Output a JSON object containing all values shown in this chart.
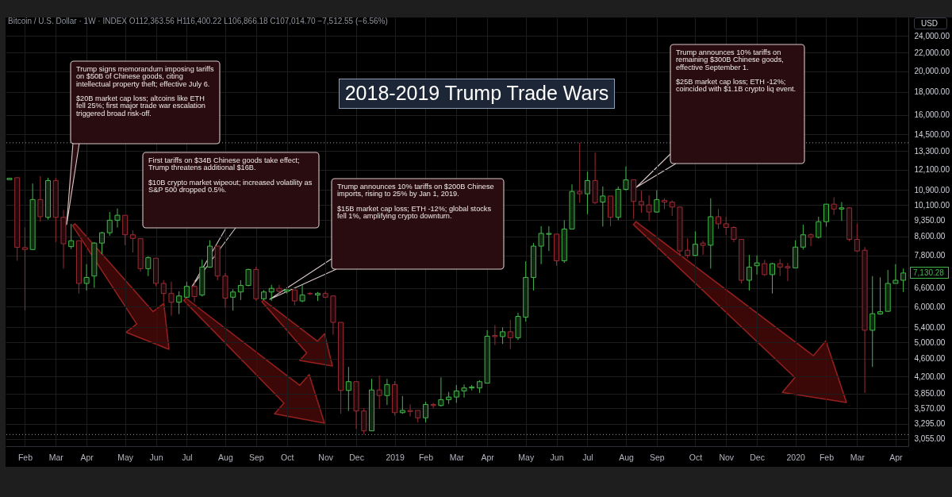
{
  "chart_data": {
    "type": "candlestick",
    "title": "2018-2019 Trump Trade Wars",
    "subtitle": "Bitcoin / U.S. Dollar · 1W · INDEX O112,363.56 H116,400.22 L106,866.18 C107,014.70 −7,512.55 (−6.56%)",
    "ylabel": "USD",
    "x": [
      "2018-01-22",
      "2018-01-29",
      "2018-02-05",
      "2018-02-12",
      "2018-02-19",
      "2018-02-26",
      "2018-03-05",
      "2018-03-12",
      "2018-03-19",
      "2018-03-26",
      "2018-04-02",
      "2018-04-09",
      "2018-04-16",
      "2018-04-23",
      "2018-04-30",
      "2018-05-07",
      "2018-05-14",
      "2018-05-21",
      "2018-05-28",
      "2018-06-04",
      "2018-06-11",
      "2018-06-18",
      "2018-06-25",
      "2018-07-02",
      "2018-07-09",
      "2018-07-16",
      "2018-07-23",
      "2018-07-30",
      "2018-08-06",
      "2018-08-13",
      "2018-08-20",
      "2018-08-27",
      "2018-09-03",
      "2018-09-10",
      "2018-09-17",
      "2018-09-24",
      "2018-10-01",
      "2018-10-08",
      "2018-10-15",
      "2018-10-22",
      "2018-10-29",
      "2018-11-05",
      "2018-11-12",
      "2018-11-19",
      "2018-11-26",
      "2018-12-03",
      "2018-12-10",
      "2018-12-17",
      "2018-12-24",
      "2018-12-31",
      "2019-01-07",
      "2019-01-14",
      "2019-01-21",
      "2019-01-28",
      "2019-02-04",
      "2019-02-11",
      "2019-02-18",
      "2019-02-25",
      "2019-03-04",
      "2019-03-11",
      "2019-03-18",
      "2019-03-25",
      "2019-04-01",
      "2019-04-08",
      "2019-04-15",
      "2019-04-22",
      "2019-04-29",
      "2019-05-06",
      "2019-05-13",
      "2019-05-20",
      "2019-05-27",
      "2019-06-03",
      "2019-06-10",
      "2019-06-17",
      "2019-06-24",
      "2019-07-01",
      "2019-07-08",
      "2019-07-15",
      "2019-07-22",
      "2019-07-29",
      "2019-08-05",
      "2019-08-12",
      "2019-08-19",
      "2019-08-26",
      "2019-09-02",
      "2019-09-09",
      "2019-09-16",
      "2019-09-23",
      "2019-09-30",
      "2019-10-07",
      "2019-10-14",
      "2019-10-21",
      "2019-10-28",
      "2019-11-04",
      "2019-11-11",
      "2019-11-18",
      "2019-11-25",
      "2019-12-02",
      "2019-12-09",
      "2019-12-16",
      "2019-12-23",
      "2019-12-30",
      "2020-01-06",
      "2020-01-13",
      "2020-01-20",
      "2020-01-27",
      "2020-02-03",
      "2020-02-10",
      "2020-02-17",
      "2020-02-24",
      "2020-03-02",
      "2020-03-09",
      "2020-03-16",
      "2020-03-23",
      "2020-03-30",
      "2020-04-06",
      "2020-04-13"
    ],
    "ohlc": [
      [
        11490,
        11580,
        11490,
        11580
      ],
      [
        11610,
        11610,
        7590,
        8130
      ],
      [
        8120,
        9000,
        5890,
        8040
      ],
      [
        8040,
        11270,
        8040,
        10380
      ],
      [
        10380,
        11700,
        9270,
        9510
      ],
      [
        9480,
        11610,
        9370,
        11440
      ],
      [
        11440,
        11610,
        8350,
        9480
      ],
      [
        9480,
        9840,
        7290,
        8280
      ],
      [
        8160,
        9170,
        8060,
        8410
      ],
      [
        8410,
        8410,
        6420,
        6760
      ],
      [
        6760,
        7460,
        6520,
        6970
      ],
      [
        7020,
        8350,
        6610,
        8310
      ],
      [
        8310,
        8800,
        7860,
        8760
      ],
      [
        8760,
        9740,
        8630,
        9340
      ],
      [
        9340,
        9920,
        9000,
        9580
      ],
      [
        9580,
        9580,
        8220,
        8670
      ],
      [
        8670,
        8860,
        7920,
        8510
      ],
      [
        8500,
        8500,
        7180,
        7290
      ],
      [
        7290,
        7770,
        7020,
        7710
      ],
      [
        7690,
        7690,
        6660,
        6760
      ],
      [
        6760,
        6870,
        6140,
        6420
      ],
      [
        6420,
        6820,
        5730,
        6140
      ],
      [
        6140,
        6490,
        5780,
        6340
      ],
      [
        6300,
        6820,
        6270,
        6660
      ],
      [
        6660,
        6870,
        6140,
        6320
      ],
      [
        6370,
        7630,
        6320,
        7350
      ],
      [
        7350,
        8430,
        7320,
        8180
      ],
      [
        8180,
        8180,
        6870,
        7020
      ],
      [
        7020,
        7130,
        5970,
        6270
      ],
      [
        6300,
        6560,
        5880,
        6470
      ],
      [
        6470,
        6870,
        6210,
        6690
      ],
      [
        6690,
        7290,
        6660,
        7260
      ],
      [
        7260,
        7370,
        6180,
        6250
      ],
      [
        6250,
        6530,
        6210,
        6470
      ],
      [
        6470,
        6710,
        6180,
        6590
      ],
      [
        6590,
        6710,
        6420,
        6490
      ],
      [
        6490,
        6560,
        6420,
        6540
      ],
      [
        6540,
        6540,
        6040,
        6180
      ],
      [
        6180,
        6710,
        6140,
        6370
      ],
      [
        6420,
        6470,
        6370,
        6410
      ],
      [
        6370,
        6470,
        6180,
        6420
      ],
      [
        6420,
        6490,
        6270,
        6300
      ],
      [
        6340,
        6340,
        5200,
        5540
      ],
      [
        5540,
        5540,
        3470,
        3910
      ],
      [
        3910,
        4410,
        3520,
        4090
      ],
      [
        4090,
        4090,
        3210,
        3520
      ],
      [
        3520,
        3570,
        3120,
        3180
      ],
      [
        3180,
        4150,
        3180,
        3920
      ],
      [
        3920,
        4220,
        3560,
        3810
      ],
      [
        3810,
        4150,
        3630,
        4030
      ],
      [
        4030,
        4100,
        3440,
        3490
      ],
      [
        3490,
        3800,
        3470,
        3530
      ],
      [
        3530,
        3640,
        3420,
        3510
      ],
      [
        3530,
        3530,
        3320,
        3400
      ],
      [
        3400,
        3690,
        3320,
        3640
      ],
      [
        3640,
        3670,
        3570,
        3620
      ],
      [
        3620,
        4180,
        3600,
        3730
      ],
      [
        3730,
        3880,
        3650,
        3780
      ],
      [
        3780,
        4020,
        3670,
        3900
      ],
      [
        3900,
        4030,
        3770,
        3960
      ],
      [
        3960,
        4020,
        3910,
        3980
      ],
      [
        3960,
        4120,
        3860,
        4090
      ],
      [
        4060,
        5320,
        4060,
        5160
      ],
      [
        5180,
        5460,
        4930,
        5150
      ],
      [
        5150,
        5400,
        4960,
        5280
      ],
      [
        5280,
        5610,
        4830,
        5120
      ],
      [
        5120,
        5820,
        5060,
        5710
      ],
      [
        5690,
        7570,
        5560,
        6970
      ],
      [
        6970,
        8310,
        6520,
        8180
      ],
      [
        8180,
        9060,
        7460,
        8730
      ],
      [
        8690,
        9060,
        7980,
        8730
      ],
      [
        8700,
        8700,
        7400,
        7590
      ],
      [
        7590,
        9340,
        7510,
        8930
      ],
      [
        8930,
        11220,
        8930,
        10820
      ],
      [
        10820,
        13880,
        10220,
        10690
      ],
      [
        10690,
        11970,
        9630,
        11440
      ],
      [
        11440,
        13200,
        10140,
        10220
      ],
      [
        10250,
        11100,
        9040,
        10570
      ],
      [
        10570,
        10570,
        9060,
        9480
      ],
      [
        9480,
        11100,
        9340,
        10940
      ],
      [
        10940,
        12300,
        10860,
        11480
      ],
      [
        11490,
        11490,
        9410,
        10280
      ],
      [
        10280,
        10860,
        9700,
        10100
      ],
      [
        10100,
        10610,
        9310,
        9740
      ],
      [
        9740,
        10890,
        9710,
        10380
      ],
      [
        10340,
        10450,
        9890,
        10250
      ],
      [
        10250,
        10340,
        9550,
        9990
      ],
      [
        9990,
        9990,
        7780,
        7980
      ],
      [
        8010,
        8510,
        7690,
        7800
      ],
      [
        7800,
        8820,
        7780,
        8260
      ],
      [
        8310,
        8410,
        7820,
        8210
      ],
      [
        8220,
        10450,
        7290,
        9510
      ],
      [
        9510,
        9890,
        8930,
        9170
      ],
      [
        9170,
        9510,
        8670,
        9000
      ],
      [
        9000,
        9060,
        8350,
        8470
      ],
      [
        8470,
        8470,
        6760,
        6870
      ],
      [
        6870,
        7820,
        6520,
        7350
      ],
      [
        7400,
        7800,
        7070,
        7510
      ],
      [
        7480,
        7630,
        7020,
        7070
      ],
      [
        7070,
        7510,
        6420,
        7480
      ],
      [
        7480,
        7660,
        7020,
        7350
      ],
      [
        7370,
        7510,
        6840,
        7320
      ],
      [
        7320,
        8430,
        7320,
        8140
      ],
      [
        8140,
        9130,
        8040,
        8670
      ],
      [
        8670,
        8730,
        8180,
        8560
      ],
      [
        8560,
        9510,
        8510,
        9270
      ],
      [
        9270,
        10140,
        9040,
        10140
      ],
      [
        10140,
        10500,
        9600,
        9890
      ],
      [
        9890,
        10250,
        9310,
        9950
      ],
      [
        9950,
        9990,
        8380,
        8470
      ],
      [
        8470,
        9170,
        7940,
        7980
      ],
      [
        8010,
        8140,
        3860,
        5320
      ],
      [
        5320,
        7020,
        4410,
        5790
      ],
      [
        5780,
        6970,
        5760,
        5850
      ],
      [
        5860,
        7240,
        5850,
        6760
      ],
      [
        6760,
        7460,
        6760,
        6870
      ],
      [
        6870,
        7290,
        6470,
        7130.28
      ]
    ],
    "colors": [
      "#43b84a",
      "#9b2c36",
      "#9b2c36",
      "#43b84a",
      "#9b2c36",
      "#43b84a",
      "#9b2c36",
      "#9b2c36",
      "#43b84a",
      "#9b2c36",
      "#43b84a",
      "#43b84a",
      "#43b84a",
      "#43b84a",
      "#43b84a",
      "#9b2c36",
      "#9b2c36",
      "#9b2c36",
      "#43b84a",
      "#9b2c36",
      "#9b2c36",
      "#9b2c36",
      "#43b84a",
      "#43b84a",
      "#9b2c36",
      "#43b84a",
      "#43b84a",
      "#9b2c36",
      "#9b2c36",
      "#43b84a",
      "#43b84a",
      "#43b84a",
      "#9b2c36",
      "#43b84a",
      "#43b84a",
      "#9b2c36",
      "#43b84a",
      "#9b2c36",
      "#43b84a",
      "#9b2c36",
      "#43b84a",
      "#9b2c36",
      "#9b2c36",
      "#9b2c36",
      "#43b84a",
      "#9b2c36",
      "#9b2c36",
      "#43b84a",
      "#9b2c36",
      "#43b84a",
      "#9b2c36",
      "#43b84a",
      "#9b2c36",
      "#9b2c36",
      "#43b84a",
      "#9b2c36",
      "#43b84a",
      "#43b84a",
      "#43b84a",
      "#43b84a",
      "#43b84a",
      "#43b84a",
      "#43b84a",
      "#9b2c36",
      "#43b84a",
      "#9b2c36",
      "#43b84a",
      "#43b84a",
      "#43b84a",
      "#43b84a",
      "#43b84a",
      "#9b2c36",
      "#43b84a",
      "#43b84a",
      "#9b2c36",
      "#43b84a",
      "#9b2c36",
      "#43b84a",
      "#9b2c36",
      "#43b84a",
      "#43b84a",
      "#9b2c36",
      "#9b2c36",
      "#9b2c36",
      "#43b84a",
      "#9b2c36",
      "#9b2c36",
      "#9b2c36",
      "#9b2c36",
      "#43b84a",
      "#9b2c36",
      "#43b84a",
      "#9b2c36",
      "#9b2c36",
      "#9b2c36",
      "#9b2c36",
      "#43b84a",
      "#43b84a",
      "#9b2c36",
      "#43b84a",
      "#9b2c36",
      "#9b2c36",
      "#43b84a",
      "#43b84a",
      "#9b2c36",
      "#43b84a",
      "#43b84a",
      "#9b2c36",
      "#43b84a",
      "#9b2c36",
      "#9b2c36",
      "#9b2c36",
      "#43b84a",
      "#43b84a",
      "#43b84a",
      "#43b84a",
      "#43b84a"
    ],
    "xlim": [
      "2018-01-22",
      "2020-04-14"
    ],
    "ylim": [
      2940,
      26350
    ],
    "xticks": [
      {
        "value": "2018-02-05",
        "label": "Feb"
      },
      {
        "value": "2018-03-05",
        "label": "Mar"
      },
      {
        "value": "2018-04-02",
        "label": "Apr"
      },
      {
        "value": "2018-05-07",
        "label": "May"
      },
      {
        "value": "2018-06-04",
        "label": "Jun"
      },
      {
        "value": "2018-07-02",
        "label": "Jul"
      },
      {
        "value": "2018-08-06",
        "label": "Aug"
      },
      {
        "value": "2018-09-03",
        "label": "Sep"
      },
      {
        "value": "2018-10-01",
        "label": "Oct"
      },
      {
        "value": "2018-11-05",
        "label": "Nov"
      },
      {
        "value": "2018-12-03",
        "label": "Dec"
      },
      {
        "value": "2019-01-07",
        "label": "2019"
      },
      {
        "value": "2019-02-04",
        "label": "Feb"
      },
      {
        "value": "2019-03-04",
        "label": "Mar"
      },
      {
        "value": "2019-04-01",
        "label": "Apr"
      },
      {
        "value": "2019-05-06",
        "label": "May"
      },
      {
        "value": "2019-06-03",
        "label": "Jun"
      },
      {
        "value": "2019-07-01",
        "label": "Jul"
      },
      {
        "value": "2019-08-05",
        "label": "Aug"
      },
      {
        "value": "2019-09-02",
        "label": "Sep"
      },
      {
        "value": "2019-10-07",
        "label": "Oct"
      },
      {
        "value": "2019-11-04",
        "label": "Nov"
      },
      {
        "value": "2019-12-02",
        "label": "Dec"
      },
      {
        "value": "2020-01-06",
        "label": "2020"
      },
      {
        "value": "2020-02-03",
        "label": "Feb"
      },
      {
        "value": "2020-03-02",
        "label": "Mar"
      },
      {
        "value": "2020-04-06",
        "label": "Apr"
      }
    ],
    "yticks": [
      {
        "value": 24000,
        "label": "24,000.00"
      },
      {
        "value": 22000,
        "label": "22,000.00"
      },
      {
        "value": 20000,
        "label": "20,000.00"
      },
      {
        "value": 18000,
        "label": "18,000.00"
      },
      {
        "value": 16000,
        "label": "16,000.00"
      },
      {
        "value": 14500,
        "label": "14,500.00"
      },
      {
        "value": 13300,
        "label": "13,300.00"
      },
      {
        "value": 12100,
        "label": "12,100.00"
      },
      {
        "value": 10900,
        "label": "10,900.00"
      },
      {
        "value": 10100,
        "label": "10,100.00"
      },
      {
        "value": 9350,
        "label": "9,350.00"
      },
      {
        "value": 8600,
        "label": "8,600.00"
      },
      {
        "value": 7800,
        "label": "7,800.00"
      },
      {
        "value": 6600,
        "label": "6,600.00"
      },
      {
        "value": 6000,
        "label": "6,000.00"
      },
      {
        "value": 5400,
        "label": "5,400.00"
      },
      {
        "value": 5000,
        "label": "5,000.00"
      },
      {
        "value": 4600,
        "label": "4,600.00"
      },
      {
        "value": 4200,
        "label": "4,200.00"
      },
      {
        "value": 3850,
        "label": "3,850.00"
      },
      {
        "value": 3570,
        "label": "3,570.00"
      },
      {
        "value": 3295,
        "label": "3,295.00"
      },
      {
        "value": 3055,
        "label": "3,055.00"
      }
    ],
    "log": "y",
    "grid": true,
    "ref_lines": [
      {
        "axis": "y",
        "value": 13880,
        "line_style": "dotted",
        "color": "#9598a1"
      },
      {
        "axis": "y",
        "value": 3120,
        "line_style": "dotted",
        "color": "#9598a1"
      }
    ],
    "annotations": [
      "Trump signs memorandum imposing tariffs on $50B of Chinese goods, citing intellectual property theft; effective July 6.\n\n$20B market cap loss; altcoins like ETH fell 25%; first major trade war escalation triggered broad risk-off.",
      "First tariffs on $34B Chinese goods take effect; Trump threatens additional $16B.\n\n$10B crypto market wipeout; increased volatility as S&P 500 dropped 0.5%.",
      "Trump announces 10% tariffs on $200B Chinese imports, rising to 25% by Jan 1, 2019.\n\n$15B market cap loss; ETH -12%; global stocks fell 1%, amplifying crypto downturn.",
      "Trump announces 10% tariffs on remaining $300B Chinese goods, effective September 1.\n\n$25B market cap loss; ETH -12%; coincided with $1.1B crypto liq event.",
      {
        "text": "7,130.28",
        "x": "2020-04-13",
        "y": 7130.28
      }
    ]
  }
}
